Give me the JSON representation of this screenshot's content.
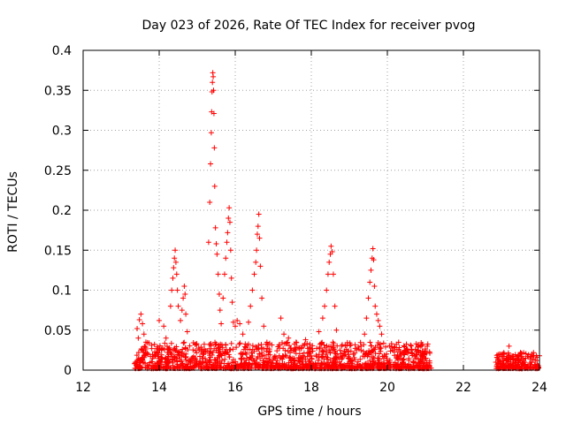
{
  "chart_data": {
    "type": "scatter",
    "title": "Day 023 of 2026, Rate Of TEC Index for receiver pvog",
    "xlabel": "GPS time / hours",
    "ylabel": "ROTI / TECUs",
    "xlim": [
      12,
      24
    ],
    "ylim": [
      0,
      0.4
    ],
    "x_ticks": [
      "12",
      "14",
      "16",
      "18",
      "20",
      "22",
      "24"
    ],
    "y_ticks": [
      "0",
      "0.05",
      "0.1",
      "0.15",
      "0.2",
      "0.25",
      "0.3",
      "0.35",
      "0.4"
    ],
    "grid": true,
    "marker": "+",
    "color": "#ff0000",
    "series": [
      {
        "points": [
          [
            13.42,
            0.052
          ],
          [
            13.48,
            0.063
          ],
          [
            13.52,
            0.07
          ],
          [
            13.56,
            0.058
          ],
          [
            13.45,
            0.04
          ],
          [
            13.6,
            0.045
          ],
          [
            13.65,
            0.035
          ],
          [
            14.0,
            0.062
          ],
          [
            14.12,
            0.055
          ],
          [
            14.18,
            0.04
          ],
          [
            14.3,
            0.08
          ],
          [
            14.33,
            0.1
          ],
          [
            14.36,
            0.115
          ],
          [
            14.38,
            0.128
          ],
          [
            14.4,
            0.14
          ],
          [
            14.42,
            0.15
          ],
          [
            14.44,
            0.135
          ],
          [
            14.46,
            0.12
          ],
          [
            14.48,
            0.1
          ],
          [
            14.5,
            0.08
          ],
          [
            14.56,
            0.062
          ],
          [
            14.6,
            0.075
          ],
          [
            14.63,
            0.09
          ],
          [
            14.66,
            0.105
          ],
          [
            14.68,
            0.095
          ],
          [
            14.7,
            0.07
          ],
          [
            14.74,
            0.048
          ],
          [
            15.3,
            0.16
          ],
          [
            15.33,
            0.21
          ],
          [
            15.35,
            0.258
          ],
          [
            15.37,
            0.297
          ],
          [
            15.38,
            0.323
          ],
          [
            15.39,
            0.348
          ],
          [
            15.4,
            0.36
          ],
          [
            15.41,
            0.372
          ],
          [
            15.42,
            0.367
          ],
          [
            15.43,
            0.35
          ],
          [
            15.44,
            0.321
          ],
          [
            15.45,
            0.278
          ],
          [
            15.46,
            0.23
          ],
          [
            15.48,
            0.178
          ],
          [
            15.5,
            0.158
          ],
          [
            15.52,
            0.145
          ],
          [
            15.55,
            0.12
          ],
          [
            15.58,
            0.095
          ],
          [
            15.6,
            0.075
          ],
          [
            15.63,
            0.058
          ],
          [
            15.68,
            0.09
          ],
          [
            15.72,
            0.12
          ],
          [
            15.75,
            0.14
          ],
          [
            15.78,
            0.16
          ],
          [
            15.8,
            0.172
          ],
          [
            15.82,
            0.19
          ],
          [
            15.84,
            0.203
          ],
          [
            15.86,
            0.185
          ],
          [
            15.88,
            0.15
          ],
          [
            15.9,
            0.115
          ],
          [
            15.92,
            0.085
          ],
          [
            15.95,
            0.06
          ],
          [
            16.0,
            0.055
          ],
          [
            16.05,
            0.062
          ],
          [
            16.12,
            0.058
          ],
          [
            16.2,
            0.045
          ],
          [
            16.35,
            0.06
          ],
          [
            16.4,
            0.08
          ],
          [
            16.45,
            0.1
          ],
          [
            16.5,
            0.12
          ],
          [
            16.54,
            0.135
          ],
          [
            16.56,
            0.15
          ],
          [
            16.58,
            0.17
          ],
          [
            16.6,
            0.18
          ],
          [
            16.62,
            0.195
          ],
          [
            16.64,
            0.165
          ],
          [
            16.66,
            0.13
          ],
          [
            16.7,
            0.09
          ],
          [
            16.75,
            0.055
          ],
          [
            17.2,
            0.065
          ],
          [
            17.28,
            0.045
          ],
          [
            17.4,
            0.04
          ],
          [
            17.6,
            0.035
          ],
          [
            17.85,
            0.038
          ],
          [
            18.2,
            0.048
          ],
          [
            18.3,
            0.065
          ],
          [
            18.35,
            0.08
          ],
          [
            18.4,
            0.1
          ],
          [
            18.44,
            0.12
          ],
          [
            18.47,
            0.135
          ],
          [
            18.5,
            0.145
          ],
          [
            18.52,
            0.155
          ],
          [
            18.55,
            0.148
          ],
          [
            18.58,
            0.12
          ],
          [
            18.62,
            0.08
          ],
          [
            18.66,
            0.05
          ],
          [
            19.4,
            0.045
          ],
          [
            19.45,
            0.065
          ],
          [
            19.5,
            0.09
          ],
          [
            19.54,
            0.11
          ],
          [
            19.57,
            0.125
          ],
          [
            19.6,
            0.14
          ],
          [
            19.62,
            0.152
          ],
          [
            19.64,
            0.138
          ],
          [
            19.66,
            0.105
          ],
          [
            19.68,
            0.08
          ],
          [
            19.72,
            0.07
          ],
          [
            19.76,
            0.062
          ],
          [
            19.8,
            0.055
          ],
          [
            19.85,
            0.045
          ],
          [
            20.2,
            0.028
          ],
          [
            20.5,
            0.026
          ],
          [
            20.8,
            0.025
          ],
          [
            21.05,
            0.03
          ],
          [
            22.95,
            0.02
          ],
          [
            23.2,
            0.03
          ],
          [
            23.5,
            0.022
          ],
          [
            23.8,
            0.02
          ],
          [
            24.0,
            0.018
          ]
        ]
      }
    ],
    "dense_bands": [
      {
        "x_start": 13.35,
        "x_end": 21.15,
        "y_min": 0.002,
        "y_max": 0.035
      },
      {
        "x_start": 22.85,
        "x_end": 24.0,
        "y_min": 0.002,
        "y_max": 0.022
      }
    ]
  }
}
